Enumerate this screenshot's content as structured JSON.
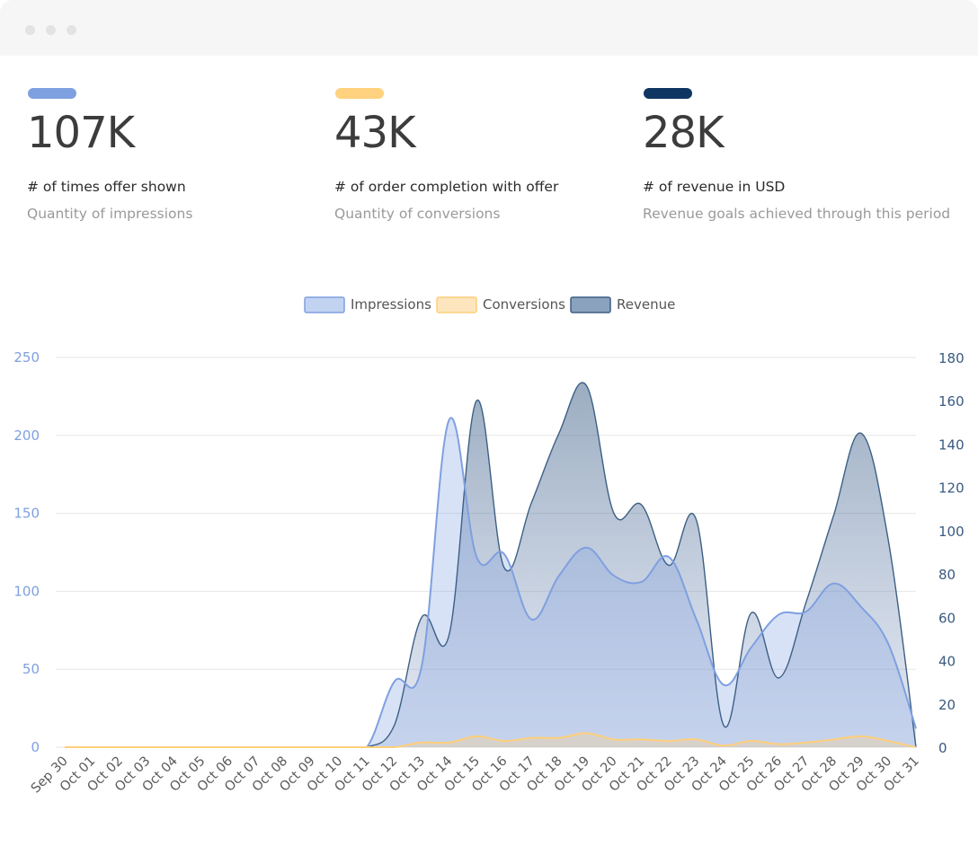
{
  "kpis": [
    {
      "color": "#7fa0e0",
      "value": "107K",
      "label": "# of times offer shown",
      "sub": "Quantity of impressions"
    },
    {
      "color": "#ffd27f",
      "value": "43K",
      "label": "# of order completion with offer",
      "sub": "Quantity of conversions"
    },
    {
      "color": "#0f3562",
      "value": "28K",
      "label": "# of revenue in USD",
      "sub": "Revenue goals achieved through this period"
    }
  ],
  "chart_data": {
    "type": "area",
    "categories": [
      "Sep 30",
      "Oct 01",
      "Oct 02",
      "Oct 03",
      "Oct 04",
      "Oct 05",
      "Oct 06",
      "Oct 07",
      "Oct 08",
      "Oct 09",
      "Oct 10",
      "Oct 11",
      "Oct 12",
      "Oct 13",
      "Oct 14",
      "Oct 15",
      "Oct 16",
      "Oct 17",
      "Oct 18",
      "Oct 19",
      "Oct 20",
      "Oct 21",
      "Oct 22",
      "Oct 23",
      "Oct 24",
      "Oct 25",
      "Oct 26",
      "Oct 27",
      "Oct 28",
      "Oct 29",
      "Oct 30",
      "Oct 31"
    ],
    "legend": {
      "position": "top-center"
    },
    "grid": true,
    "y_left": {
      "min": 0,
      "max": 250,
      "ticks": [
        0,
        50,
        100,
        150,
        200,
        250
      ],
      "color": "#7fa0e0"
    },
    "y_right": {
      "min": 0,
      "max": 180,
      "ticks": [
        0,
        20,
        40,
        60,
        80,
        100,
        120,
        140,
        160,
        180
      ],
      "color": "#3a5a80"
    },
    "series": [
      {
        "name": "Impressions",
        "axis": "left",
        "color": "#7fa0e0",
        "fill": "rgba(127,160,224,0.30)",
        "values": [
          0,
          0,
          0,
          0,
          0,
          0,
          0,
          0,
          0,
          0,
          0,
          0,
          42,
          52,
          210,
          122,
          124,
          82,
          110,
          128,
          110,
          106,
          122,
          82,
          40,
          64,
          85,
          87,
          105,
          90,
          66,
          12
        ]
      },
      {
        "name": "Conversions",
        "axis": "left",
        "color": "#ffcf7a",
        "fill": "rgba(255,210,127,0.30)",
        "values": [
          0,
          0,
          0,
          0,
          0,
          0,
          0,
          0,
          0,
          0,
          0,
          0,
          0,
          3,
          3,
          7,
          4,
          6,
          6,
          9,
          5,
          5,
          4,
          5,
          1,
          4,
          2,
          3,
          5,
          7,
          4,
          0
        ]
      },
      {
        "name": "Revenue",
        "axis": "right",
        "color": "#3d5f85",
        "fill": "rgba(61,95,133,0.42)",
        "values": [
          0,
          0,
          0,
          0,
          0,
          0,
          0,
          0,
          0,
          0,
          0,
          0,
          10,
          60,
          52,
          160,
          83,
          113,
          145,
          167,
          108,
          112,
          84,
          105,
          10,
          62,
          32,
          67,
          107,
          145,
          95,
          0
        ]
      }
    ]
  }
}
